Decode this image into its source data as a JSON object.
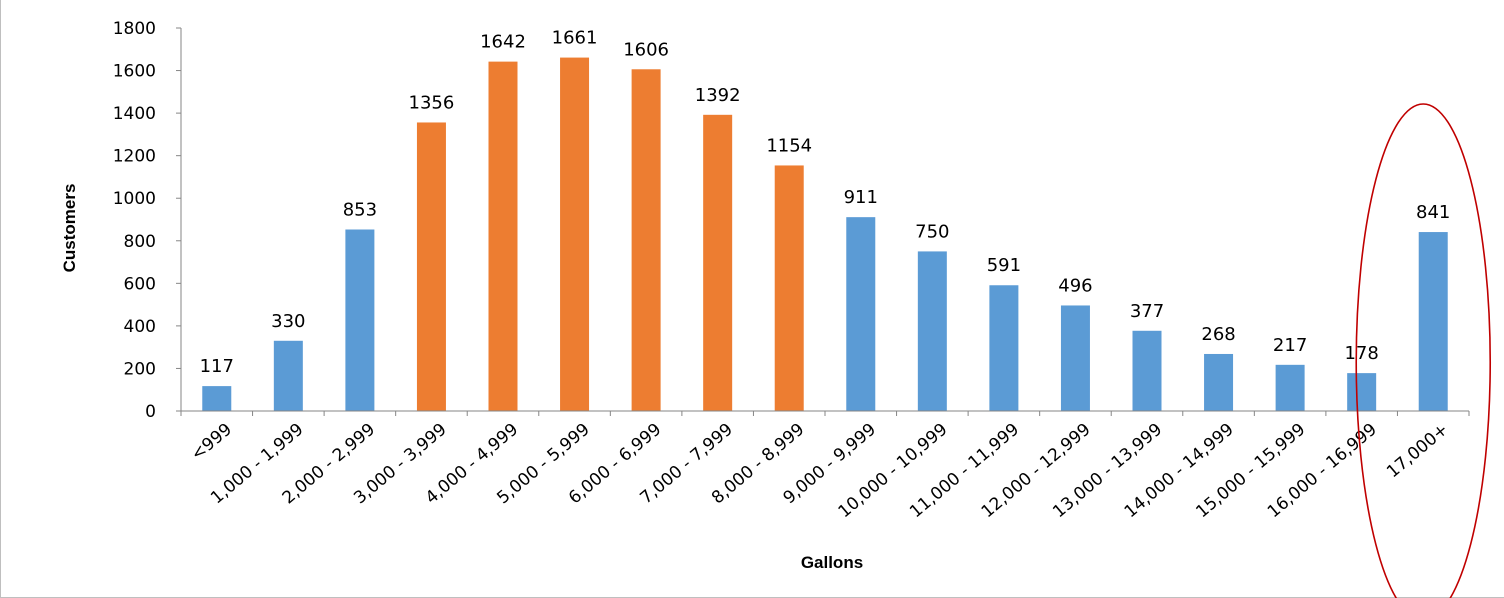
{
  "chart_data": {
    "type": "bar",
    "categories": [
      "<999",
      "1,000 - 1,999",
      "2,000 - 2,999",
      "3,000 - 3,999",
      "4,000 - 4,999",
      "5,000 - 5,999",
      "6,000 - 6,999",
      "7,000 - 7,999",
      "8,000 - 8,999",
      "9,000 - 9,999",
      "10,000 - 10,999",
      "11,000 - 11,999",
      "12,000 - 12,999",
      "13,000 - 13,999",
      "14,000 - 14,999",
      "15,000 - 15,999",
      "16,000 - 16,999",
      "17,000+"
    ],
    "values": [
      117,
      330,
      853,
      1356,
      1642,
      1661,
      1606,
      1392,
      1154,
      911,
      750,
      591,
      496,
      377,
      268,
      217,
      178,
      841
    ],
    "highlighted": [
      false,
      false,
      false,
      true,
      true,
      true,
      true,
      true,
      true,
      false,
      false,
      false,
      false,
      false,
      false,
      false,
      false,
      false
    ],
    "xlabel": "Gallons",
    "ylabel": "Customers",
    "ylim": [
      0,
      1800
    ],
    "yticks": [
      0,
      200,
      400,
      600,
      800,
      1000,
      1200,
      1400,
      1600,
      1800
    ],
    "grid": false,
    "legend": "none",
    "colors": {
      "default": "#5b9bd5",
      "highlight": "#ed7d31",
      "annotation": "#c00000"
    },
    "annotation": {
      "shape": "ellipse",
      "target_category": "17,000+"
    }
  }
}
